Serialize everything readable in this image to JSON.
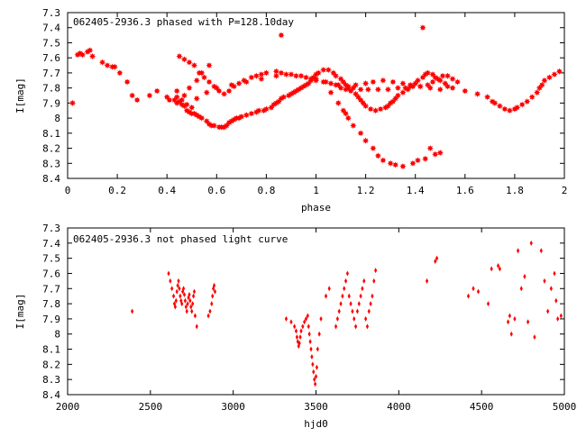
{
  "colors": {
    "points": "#ff0000",
    "axes": "#000000",
    "background": "#ffffff"
  },
  "chart_data": [
    {
      "type": "scatter",
      "title": "062405-2936.3 phased with P=128.10day",
      "xlabel": "phase",
      "ylabel": "I[mag]",
      "xlim": [
        0,
        2
      ],
      "ylim": [
        8.4,
        7.3
      ],
      "y_inverted": true,
      "x_ticks": [
        0,
        0.2,
        0.4,
        0.6,
        0.8,
        1,
        1.2,
        1.4,
        1.6,
        1.8,
        2
      ],
      "x_tick_labels": [
        "0",
        "0.2",
        "0.4",
        "0.6",
        "0.8",
        "1",
        "1.2",
        "1.4",
        "1.6",
        "1.8",
        "2"
      ],
      "y_ticks": [
        7.3,
        7.4,
        7.5,
        7.6,
        7.7,
        7.8,
        7.9,
        8.0,
        8.1,
        8.2,
        8.3,
        8.4
      ],
      "y_tick_labels": [
        "7.3",
        "7.4",
        "7.5",
        "7.6",
        "7.7",
        "7.8",
        "7.9",
        "8",
        "8.1",
        "8.2",
        "8.3",
        "8.4"
      ],
      "marker": "star",
      "series": [
        {
          "x": [
            0.02,
            0.04,
            0.05,
            0.06,
            0.08,
            0.09,
            0.1,
            0.14,
            0.16,
            0.18,
            0.19,
            0.21,
            0.24,
            0.26,
            0.28,
            0.33,
            0.36,
            0.4,
            0.41,
            0.43,
            0.44,
            0.45,
            0.46,
            0.47,
            0.48,
            0.49,
            0.5,
            0.51,
            0.52,
            0.53,
            0.54,
            0.56,
            0.57,
            0.58,
            0.59,
            0.61,
            0.62,
            0.63,
            0.64,
            0.65,
            0.66,
            0.67,
            0.68,
            0.69,
            0.7,
            0.72,
            0.74,
            0.76,
            0.77,
            0.79,
            0.8,
            0.82,
            0.83,
            0.84,
            0.85,
            0.86,
            0.87,
            0.89,
            0.9,
            0.91,
            0.92,
            0.93,
            0.94,
            0.95,
            0.96,
            0.97,
            0.98,
            0.99,
            1.0,
            1.01,
            1.03,
            1.05,
            1.07,
            1.08,
            1.1,
            1.11,
            1.12,
            1.13,
            1.14,
            1.16,
            1.17,
            1.18,
            1.19,
            1.2,
            1.22,
            1.24,
            1.26,
            1.28,
            1.29,
            1.3,
            1.31,
            1.32,
            1.33,
            1.35,
            1.37,
            1.38,
            1.4,
            1.41,
            1.43,
            1.44,
            1.45,
            1.47,
            1.48,
            1.5,
            1.52,
            1.53,
            1.55,
            1.6,
            1.65,
            1.69,
            1.71,
            1.72,
            1.74,
            1.76,
            1.78,
            1.8,
            1.81,
            1.83,
            1.85,
            1.87,
            1.89,
            1.9,
            1.91,
            1.92,
            1.94,
            1.96,
            1.98,
            0.45,
            0.47,
            0.49,
            0.51,
            0.53,
            0.55,
            0.57,
            0.59,
            0.61,
            0.63,
            0.65,
            0.67,
            0.69,
            0.71,
            0.74,
            0.76,
            0.78,
            0.8,
            0.84,
            0.86,
            0.9,
            0.92,
            0.96,
            0.98,
            1.0,
            1.03,
            1.06,
            1.08,
            1.1,
            1.12,
            1.15,
            1.18,
            1.21,
            1.25,
            1.29,
            1.33,
            1.36,
            1.39,
            1.42,
            1.45,
            1.47,
            1.49,
            1.51,
            1.53,
            1.55,
            1.57,
            0.44,
            0.46,
            0.48,
            0.5,
            0.52,
            0.56,
            0.6,
            0.66,
            0.72,
            0.78,
            0.84,
            0.88,
            0.94,
            1.0,
            1.04,
            1.09,
            1.13,
            1.16,
            1.2,
            1.23,
            1.27,
            1.31,
            1.35,
            1.38,
            1.42,
            1.46,
            1.5,
            0.44,
            0.47,
            0.49,
            0.52,
            0.54,
            0.57,
            1.06,
            1.09,
            1.11,
            1.12,
            1.13,
            1.15,
            1.18,
            1.2,
            1.23,
            1.25,
            1.27,
            1.3,
            1.32,
            1.35,
            1.39,
            1.41,
            1.44,
            1.48,
            0.86,
            1.43,
            1.46,
            1.5
          ],
          "y": [
            7.9,
            7.58,
            7.57,
            7.58,
            7.56,
            7.55,
            7.59,
            7.63,
            7.65,
            7.66,
            7.66,
            7.7,
            7.76,
            7.85,
            7.88,
            7.85,
            7.82,
            7.86,
            7.88,
            7.88,
            7.9,
            7.89,
            7.91,
            7.92,
            7.95,
            7.96,
            7.97,
            7.97,
            7.98,
            7.99,
            8.0,
            8.02,
            8.04,
            8.05,
            8.05,
            8.06,
            8.06,
            8.06,
            8.05,
            8.03,
            8.02,
            8.01,
            8.0,
            8.0,
            7.99,
            7.98,
            7.97,
            7.96,
            7.95,
            7.95,
            7.94,
            7.93,
            7.91,
            7.9,
            7.89,
            7.87,
            7.86,
            7.85,
            7.84,
            7.83,
            7.82,
            7.81,
            7.8,
            7.79,
            7.78,
            7.77,
            7.75,
            7.73,
            7.71,
            7.7,
            7.68,
            7.68,
            7.7,
            7.72,
            7.74,
            7.76,
            7.78,
            7.8,
            7.82,
            7.84,
            7.86,
            7.88,
            7.9,
            7.92,
            7.94,
            7.95,
            7.94,
            7.93,
            7.92,
            7.9,
            7.89,
            7.87,
            7.85,
            7.83,
            7.81,
            7.79,
            7.77,
            7.75,
            7.73,
            7.71,
            7.7,
            7.71,
            7.73,
            7.75,
            7.77,
            7.79,
            7.8,
            7.82,
            7.84,
            7.86,
            7.89,
            7.9,
            7.92,
            7.94,
            7.95,
            7.94,
            7.93,
            7.91,
            7.89,
            7.86,
            7.83,
            7.8,
            7.78,
            7.75,
            7.73,
            7.71,
            7.69,
            7.59,
            7.61,
            7.63,
            7.65,
            7.7,
            7.73,
            7.76,
            7.79,
            7.82,
            7.84,
            7.82,
            7.79,
            7.77,
            7.75,
            7.73,
            7.72,
            7.71,
            7.7,
            7.69,
            7.7,
            7.71,
            7.72,
            7.73,
            7.74,
            7.75,
            7.76,
            7.77,
            7.78,
            7.8,
            7.81,
            7.8,
            7.81,
            7.81,
            7.81,
            7.81,
            7.8,
            7.8,
            7.79,
            7.79,
            7.78,
            7.76,
            7.74,
            7.72,
            7.72,
            7.74,
            7.76,
            7.86,
            7.88,
            7.91,
            7.93,
            7.87,
            7.83,
            7.8,
            7.78,
            7.76,
            7.74,
            7.72,
            7.71,
            7.72,
            7.74,
            7.76,
            7.78,
            7.79,
            7.78,
            7.77,
            7.76,
            7.75,
            7.76,
            7.77,
            7.78,
            7.79,
            7.8,
            7.81,
            7.82,
            7.85,
            7.8,
            7.75,
            7.7,
            7.65,
            7.83,
            7.9,
            7.95,
            7.97,
            8.0,
            8.05,
            8.1,
            8.15,
            8.2,
            8.25,
            8.28,
            8.3,
            8.31,
            8.32,
            8.3,
            8.28,
            8.27,
            8.24,
            7.45,
            7.4,
            8.2,
            8.23
          ]
        }
      ]
    },
    {
      "type": "scatter",
      "title": "062405-2936.3 not phased light curve",
      "xlabel": "hjd0",
      "ylabel": "I[mag]",
      "xlim": [
        2000,
        5000
      ],
      "ylim": [
        8.4,
        7.3
      ],
      "y_inverted": true,
      "x_ticks": [
        2000,
        2500,
        3000,
        3500,
        4000,
        4500,
        5000
      ],
      "x_tick_labels": [
        "2000",
        "2500",
        "3000",
        "3500",
        "4000",
        "4500",
        "5000"
      ],
      "y_ticks": [
        7.3,
        7.4,
        7.5,
        7.6,
        7.7,
        7.8,
        7.9,
        8.0,
        8.1,
        8.2,
        8.3,
        8.4
      ],
      "y_tick_labels": [
        "7.3",
        "7.4",
        "7.5",
        "7.6",
        "7.7",
        "7.8",
        "7.9",
        "8",
        "8.1",
        "8.2",
        "8.3",
        "8.4"
      ],
      "marker": "diamond",
      "series": [
        {
          "x": [
            2390,
            2610,
            2620,
            2630,
            2640,
            2645,
            2650,
            2655,
            2660,
            2665,
            2670,
            2675,
            2680,
            2685,
            2690,
            2695,
            2700,
            2705,
            2710,
            2715,
            2720,
            2725,
            2730,
            2735,
            2740,
            2745,
            2750,
            2755,
            2760,
            2765,
            2770,
            2780,
            2850,
            2860,
            2870,
            2875,
            2880,
            2885,
            2890,
            3320,
            3350,
            3370,
            3380,
            3385,
            3390,
            3395,
            3400,
            3405,
            3410,
            3420,
            3430,
            3440,
            3450,
            3455,
            3460,
            3465,
            3470,
            3475,
            3480,
            3485,
            3490,
            3495,
            3500,
            3505,
            3510,
            3520,
            3530,
            3560,
            3580,
            3620,
            3630,
            3640,
            3650,
            3660,
            3670,
            3680,
            3690,
            3700,
            3710,
            3720,
            3730,
            3740,
            3750,
            3760,
            3770,
            3780,
            3790,
            3800,
            3810,
            3820,
            3830,
            3840,
            3850,
            3860,
            4170,
            4220,
            4230,
            4420,
            4450,
            4480,
            4540,
            4560,
            4600,
            4610,
            4660,
            4670,
            4680,
            4700,
            4720,
            4740,
            4760,
            4780,
            4800,
            4820,
            4860,
            4880,
            4900,
            4920,
            4940,
            4950,
            4960,
            4980
          ],
          "y": [
            7.85,
            7.6,
            7.65,
            7.7,
            7.75,
            7.8,
            7.82,
            7.78,
            7.72,
            7.68,
            7.65,
            7.7,
            7.75,
            7.78,
            7.8,
            7.72,
            7.7,
            7.74,
            7.78,
            7.82,
            7.85,
            7.8,
            7.76,
            7.74,
            7.78,
            7.82,
            7.85,
            7.8,
            7.75,
            7.72,
            7.88,
            7.95,
            7.88,
            7.85,
            7.8,
            7.75,
            7.7,
            7.68,
            7.72,
            7.9,
            7.92,
            7.95,
            7.98,
            8.02,
            8.05,
            8.08,
            8.06,
            8.02,
            7.98,
            7.95,
            7.92,
            7.9,
            7.88,
            7.95,
            8.0,
            8.05,
            8.1,
            8.15,
            8.2,
            8.25,
            8.3,
            8.33,
            8.28,
            8.22,
            8.1,
            8.0,
            7.9,
            7.75,
            7.7,
            7.95,
            7.9,
            7.85,
            7.8,
            7.75,
            7.7,
            7.65,
            7.6,
            7.75,
            7.8,
            7.85,
            7.9,
            7.95,
            7.85,
            7.8,
            7.75,
            7.7,
            7.65,
            7.9,
            7.95,
            7.85,
            7.8,
            7.75,
            7.65,
            7.58,
            7.65,
            7.52,
            7.5,
            7.75,
            7.7,
            7.72,
            7.8,
            7.57,
            7.55,
            7.57,
            7.92,
            7.88,
            8.0,
            7.9,
            7.45,
            7.7,
            7.62,
            7.92,
            7.4,
            8.02,
            7.45,
            7.65,
            7.85,
            7.7,
            7.6,
            7.78,
            7.9,
            7.88
          ]
        }
      ]
    }
  ]
}
